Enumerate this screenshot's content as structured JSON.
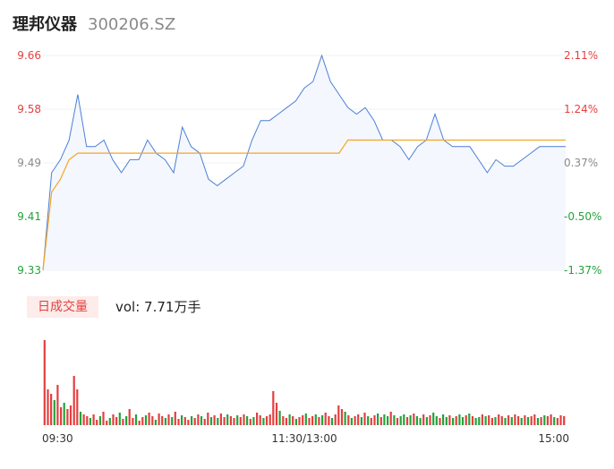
{
  "header": {
    "stock_name": "理邦仪器",
    "stock_code": "300206.SZ"
  },
  "volume_panel": {
    "badge": "日成交量",
    "vol_text": "vol: 7.71万手"
  },
  "colors": {
    "price_line": "#4a7fd9",
    "avg_line": "#f5a623",
    "area_fill": "#f4f7fd",
    "up": "#e43f3f",
    "down": "#23a33b",
    "neutral": "#8a8a8a"
  },
  "chart_data": [
    {
      "type": "line",
      "title": "",
      "xlabel": "",
      "ylabel": "",
      "ylim": [
        9.33,
        9.66
      ],
      "y_ticks_left": [
        "9.66",
        "9.58",
        "9.49",
        "9.41",
        "9.33"
      ],
      "y_ticks_right": [
        "2.11%",
        "1.24%",
        "0.37%",
        "-0.50%",
        "-1.37%"
      ],
      "x_ticks": [
        "09:30",
        "11:30/13:00",
        "15:00"
      ],
      "x": [
        0,
        4,
        8,
        12,
        16,
        20,
        24,
        28,
        32,
        36,
        40,
        44,
        48,
        52,
        56,
        60,
        64,
        68,
        72,
        76,
        80,
        84,
        88,
        92,
        96,
        100,
        104,
        108,
        112,
        116,
        120,
        124,
        128,
        132,
        136,
        140,
        144,
        148,
        152,
        156,
        160,
        164,
        168,
        172,
        176,
        180,
        184,
        188,
        192,
        196,
        200,
        204,
        208,
        212,
        216,
        220,
        224,
        228,
        232,
        236,
        240
      ],
      "series": [
        {
          "values": [
            9.33,
            9.48,
            9.5,
            9.53,
            9.6,
            9.52,
            9.52,
            9.53,
            9.5,
            9.48,
            9.5,
            9.5,
            9.53,
            9.51,
            9.5,
            9.48,
            9.55,
            9.52,
            9.51,
            9.47,
            9.46,
            9.47,
            9.48,
            9.49,
            9.53,
            9.56,
            9.56,
            9.57,
            9.58,
            9.59,
            9.61,
            9.62,
            9.66,
            9.62,
            9.6,
            9.58,
            9.57,
            9.58,
            9.56,
            9.53,
            9.53,
            9.52,
            9.5,
            9.52,
            9.53,
            9.57,
            9.53,
            9.52,
            9.52,
            9.52,
            9.5,
            9.48,
            9.5,
            9.49,
            9.49,
            9.5,
            9.51,
            9.52,
            9.52,
            9.52,
            9.52
          ]
        },
        {
          "values": [
            9.33,
            9.45,
            9.47,
            9.5,
            9.51,
            9.51,
            9.51,
            9.51,
            9.51,
            9.51,
            9.51,
            9.51,
            9.51,
            9.51,
            9.51,
            9.51,
            9.51,
            9.51,
            9.51,
            9.51,
            9.51,
            9.51,
            9.51,
            9.51,
            9.51,
            9.51,
            9.51,
            9.51,
            9.51,
            9.51,
            9.51,
            9.51,
            9.51,
            9.51,
            9.51,
            9.53,
            9.53,
            9.53,
            9.53,
            9.53,
            9.53,
            9.53,
            9.53,
            9.53,
            9.53,
            9.53,
            9.53,
            9.53,
            9.53,
            9.53,
            9.53,
            9.53,
            9.53,
            9.53,
            9.53,
            9.53,
            9.53,
            9.53,
            9.53,
            9.53,
            9.53
          ]
        }
      ]
    },
    {
      "type": "bar",
      "title": "",
      "xlabel": "",
      "ylabel": "",
      "x_ticks": [
        "09:30",
        "11:30/13:00",
        "15:00"
      ],
      "values": [
        95,
        40,
        35,
        28,
        45,
        20,
        25,
        18,
        22,
        55,
        40,
        15,
        12,
        10,
        8,
        12,
        6,
        10,
        15,
        5,
        8,
        12,
        9,
        14,
        7,
        10,
        18,
        8,
        12,
        5,
        9,
        11,
        14,
        10,
        6,
        13,
        10,
        8,
        12,
        9,
        15,
        7,
        11,
        9,
        6,
        10,
        8,
        12,
        10,
        7,
        14,
        9,
        11,
        8,
        13,
        9,
        12,
        10,
        8,
        11,
        9,
        12,
        10,
        7,
        9,
        14,
        11,
        8,
        10,
        12,
        38,
        25,
        16,
        10,
        8,
        12,
        10,
        7,
        9,
        11,
        13,
        8,
        10,
        12,
        9,
        11,
        14,
        10,
        8,
        12,
        22,
        18,
        15,
        11,
        8,
        10,
        12,
        9,
        14,
        10,
        8,
        11,
        13,
        9,
        12,
        10,
        15,
        11,
        8,
        10,
        12,
        9,
        11,
        13,
        10,
        8,
        12,
        9,
        11,
        14,
        10,
        8,
        12,
        9,
        11,
        8,
        10,
        12,
        9,
        11,
        13,
        10,
        8,
        9,
        12,
        10,
        11,
        8,
        9,
        12,
        10,
        8,
        11,
        9,
        12,
        10,
        8,
        11,
        9,
        10,
        12,
        8,
        9,
        11,
        10,
        12,
        9,
        8,
        11,
        10
      ],
      "up": [
        1,
        1,
        1,
        0,
        1,
        1,
        0,
        1,
        1,
        1,
        1,
        0,
        1,
        1,
        0,
        1,
        1,
        0,
        1,
        1,
        0,
        1,
        1,
        0,
        1,
        0,
        1,
        1,
        0,
        1,
        1,
        0,
        1,
        1,
        0,
        1,
        1,
        0,
        1,
        0,
        1,
        1,
        0,
        1,
        1,
        0,
        1,
        1,
        0,
        1,
        1,
        0,
        1,
        0,
        1,
        1,
        0,
        1,
        1,
        0,
        1,
        1,
        0,
        1,
        0,
        1,
        1,
        0,
        1,
        1,
        1,
        1,
        0,
        1,
        1,
        0,
        1,
        0,
        1,
        1,
        0,
        1,
        1,
        0,
        1,
        0,
        1,
        1,
        0,
        1,
        1,
        1,
        0,
        1,
        0,
        1,
        1,
        0,
        1,
        0,
        1,
        1,
        0,
        1,
        0,
        0,
        1,
        0,
        1,
        0,
        0,
        1,
        0,
        1,
        0,
        0,
        1,
        0,
        1,
        0,
        0,
        1,
        0,
        0,
        1,
        0,
        1,
        0,
        0,
        1,
        0,
        1,
        0,
        0,
        1,
        0,
        1,
        1,
        0,
        1,
        1,
        0,
        1,
        0,
        1,
        1,
        0,
        1,
        0,
        1,
        1,
        0,
        1,
        0,
        1,
        1,
        0,
        1,
        1,
        1
      ]
    }
  ]
}
